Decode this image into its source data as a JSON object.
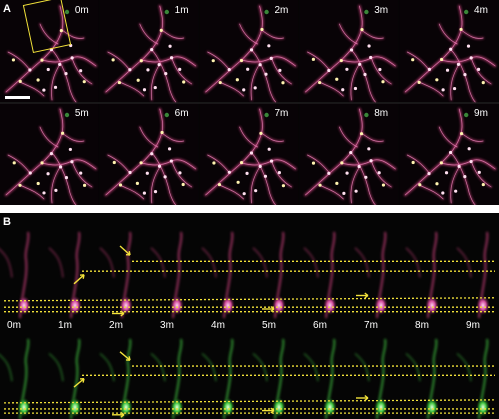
{
  "panel_a": {
    "letter": "A",
    "row1_labels": [
      "0m",
      "1m",
      "2m",
      "3m",
      "4m"
    ],
    "row2_labels": [
      "5m",
      "6m",
      "7m",
      "8m",
      "9m"
    ]
  },
  "panel_b": {
    "letter": "B",
    "time_labels": [
      "0m",
      "1m",
      "2m",
      "3m",
      "4m",
      "5m",
      "6m",
      "7m",
      "8m",
      "9m"
    ]
  },
  "colors": {
    "magenta_channel": "#c8407a",
    "green_channel": "#3fbf3f",
    "annotation": "#f2e23a",
    "background": "#050505"
  }
}
